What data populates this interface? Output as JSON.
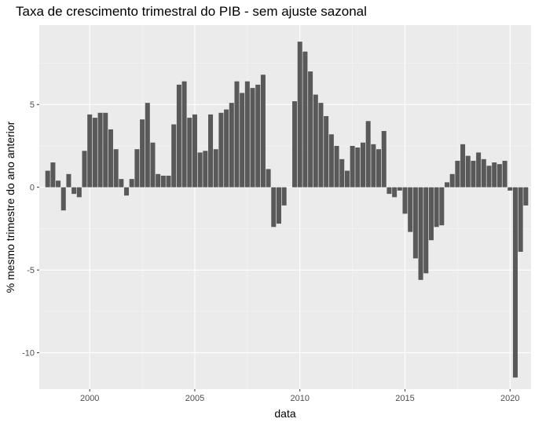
{
  "chart_data": {
    "type": "bar",
    "title": "Taxa de crescimento trimestral do PIB - sem ajuste sazonal",
    "xlabel": "data",
    "ylabel": "% mesmo trimestre do ano anterior",
    "xlim": [
      1997.6,
      2021.0
    ],
    "ylim": [
      -12.2,
      9.8
    ],
    "x_ticks": [
      2000,
      2005,
      2010,
      2015,
      2020
    ],
    "x_tick_labels": [
      "2000",
      "2005",
      "2010",
      "2015",
      "2020"
    ],
    "y_ticks": [
      -10,
      -5,
      0,
      5
    ],
    "y_tick_labels": [
      "-10",
      "-5",
      "0",
      "5"
    ],
    "grid": true,
    "background": "#ebebeb",
    "bar_color": "#595959",
    "x": [
      1998.0,
      1998.25,
      1998.5,
      1998.75,
      1999.0,
      1999.25,
      1999.5,
      1999.75,
      2000.0,
      2000.25,
      2000.5,
      2000.75,
      2001.0,
      2001.25,
      2001.5,
      2001.75,
      2002.0,
      2002.25,
      2002.5,
      2002.75,
      2003.0,
      2003.25,
      2003.5,
      2003.75,
      2004.0,
      2004.25,
      2004.5,
      2004.75,
      2005.0,
      2005.25,
      2005.5,
      2005.75,
      2006.0,
      2006.25,
      2006.5,
      2006.75,
      2007.0,
      2007.25,
      2007.5,
      2007.75,
      2008.0,
      2008.25,
      2008.5,
      2008.75,
      2009.0,
      2009.25,
      2009.5,
      2009.75,
      2010.0,
      2010.25,
      2010.5,
      2010.75,
      2011.0,
      2011.25,
      2011.5,
      2011.75,
      2012.0,
      2012.25,
      2012.5,
      2012.75,
      2013.0,
      2013.25,
      2013.5,
      2013.75,
      2014.0,
      2014.25,
      2014.5,
      2014.75,
      2015.0,
      2015.25,
      2015.5,
      2015.75,
      2016.0,
      2016.25,
      2016.5,
      2016.75,
      2017.0,
      2017.25,
      2017.5,
      2017.75,
      2018.0,
      2018.25,
      2018.5,
      2018.75,
      2019.0,
      2019.25,
      2019.5,
      2019.75,
      2020.0,
      2020.25,
      2020.5,
      2020.75
    ],
    "values": [
      1.0,
      1.5,
      0.4,
      -1.4,
      0.8,
      -0.4,
      -0.6,
      2.2,
      4.4,
      4.2,
      4.5,
      4.5,
      3.5,
      2.3,
      0.5,
      -0.5,
      0.5,
      2.3,
      4.1,
      5.1,
      2.7,
      0.8,
      0.7,
      0.7,
      3.8,
      6.2,
      6.4,
      4.2,
      4.4,
      2.1,
      2.2,
      4.4,
      2.3,
      4.5,
      4.7,
      5.1,
      6.4,
      5.7,
      6.4,
      6.0,
      6.2,
      6.8,
      1.1,
      -2.4,
      -2.2,
      -1.1,
      0.0,
      5.2,
      8.8,
      8.2,
      7.0,
      5.6,
      5.1,
      4.3,
      3.2,
      2.5,
      1.7,
      1.0,
      2.5,
      2.4,
      2.7,
      4.0,
      2.6,
      2.3,
      3.4,
      -0.4,
      -0.6,
      -0.2,
      -1.6,
      -2.7,
      -4.3,
      -5.6,
      -5.2,
      -3.2,
      -2.4,
      -2.3,
      0.3,
      0.8,
      1.6,
      2.6,
      1.9,
      1.6,
      2.1,
      1.7,
      1.3,
      1.5,
      1.4,
      1.6,
      -0.2,
      -11.5,
      -3.9,
      -1.1
    ]
  }
}
